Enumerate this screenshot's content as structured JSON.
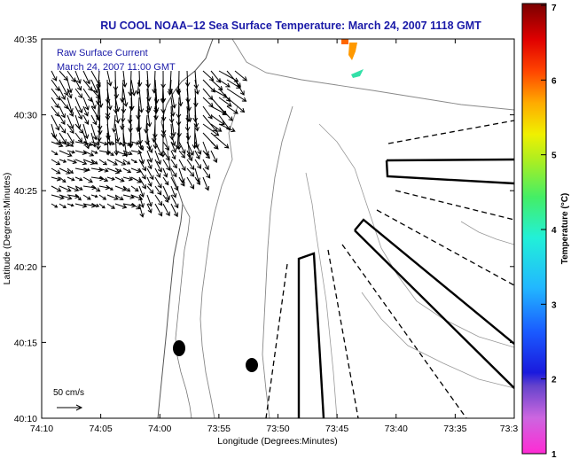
{
  "title": "RU COOL  NOAA–12  Sea Surface Temperature:  March 24, 2007 1118 GMT",
  "legend": {
    "line1": "Raw Surface Current",
    "line2": "March 24, 2007 11:00 GMT"
  },
  "axes": {
    "xlabel": "Longitude (Degrees:Minutes)",
    "ylabel": "Latitude (Degrees:Minutes)",
    "xticks": [
      "74:10",
      "74:05",
      "74:00",
      "73:55",
      "73:50",
      "73:45",
      "73:40",
      "73:35",
      "73:3"
    ],
    "yticks": [
      "40:35",
      "40:30",
      "40:25",
      "40:20",
      "40:15",
      "40:10"
    ]
  },
  "scale_label": "50 cm/s",
  "colorbar": {
    "label": "Temperature (°C)",
    "ticks": [
      "7",
      "6",
      "5",
      "4",
      "3",
      "2",
      "1"
    ],
    "min": 1,
    "max": 7
  },
  "colors": {
    "title": "#1a1aa8",
    "legend_text": "#1a1aa8"
  }
}
